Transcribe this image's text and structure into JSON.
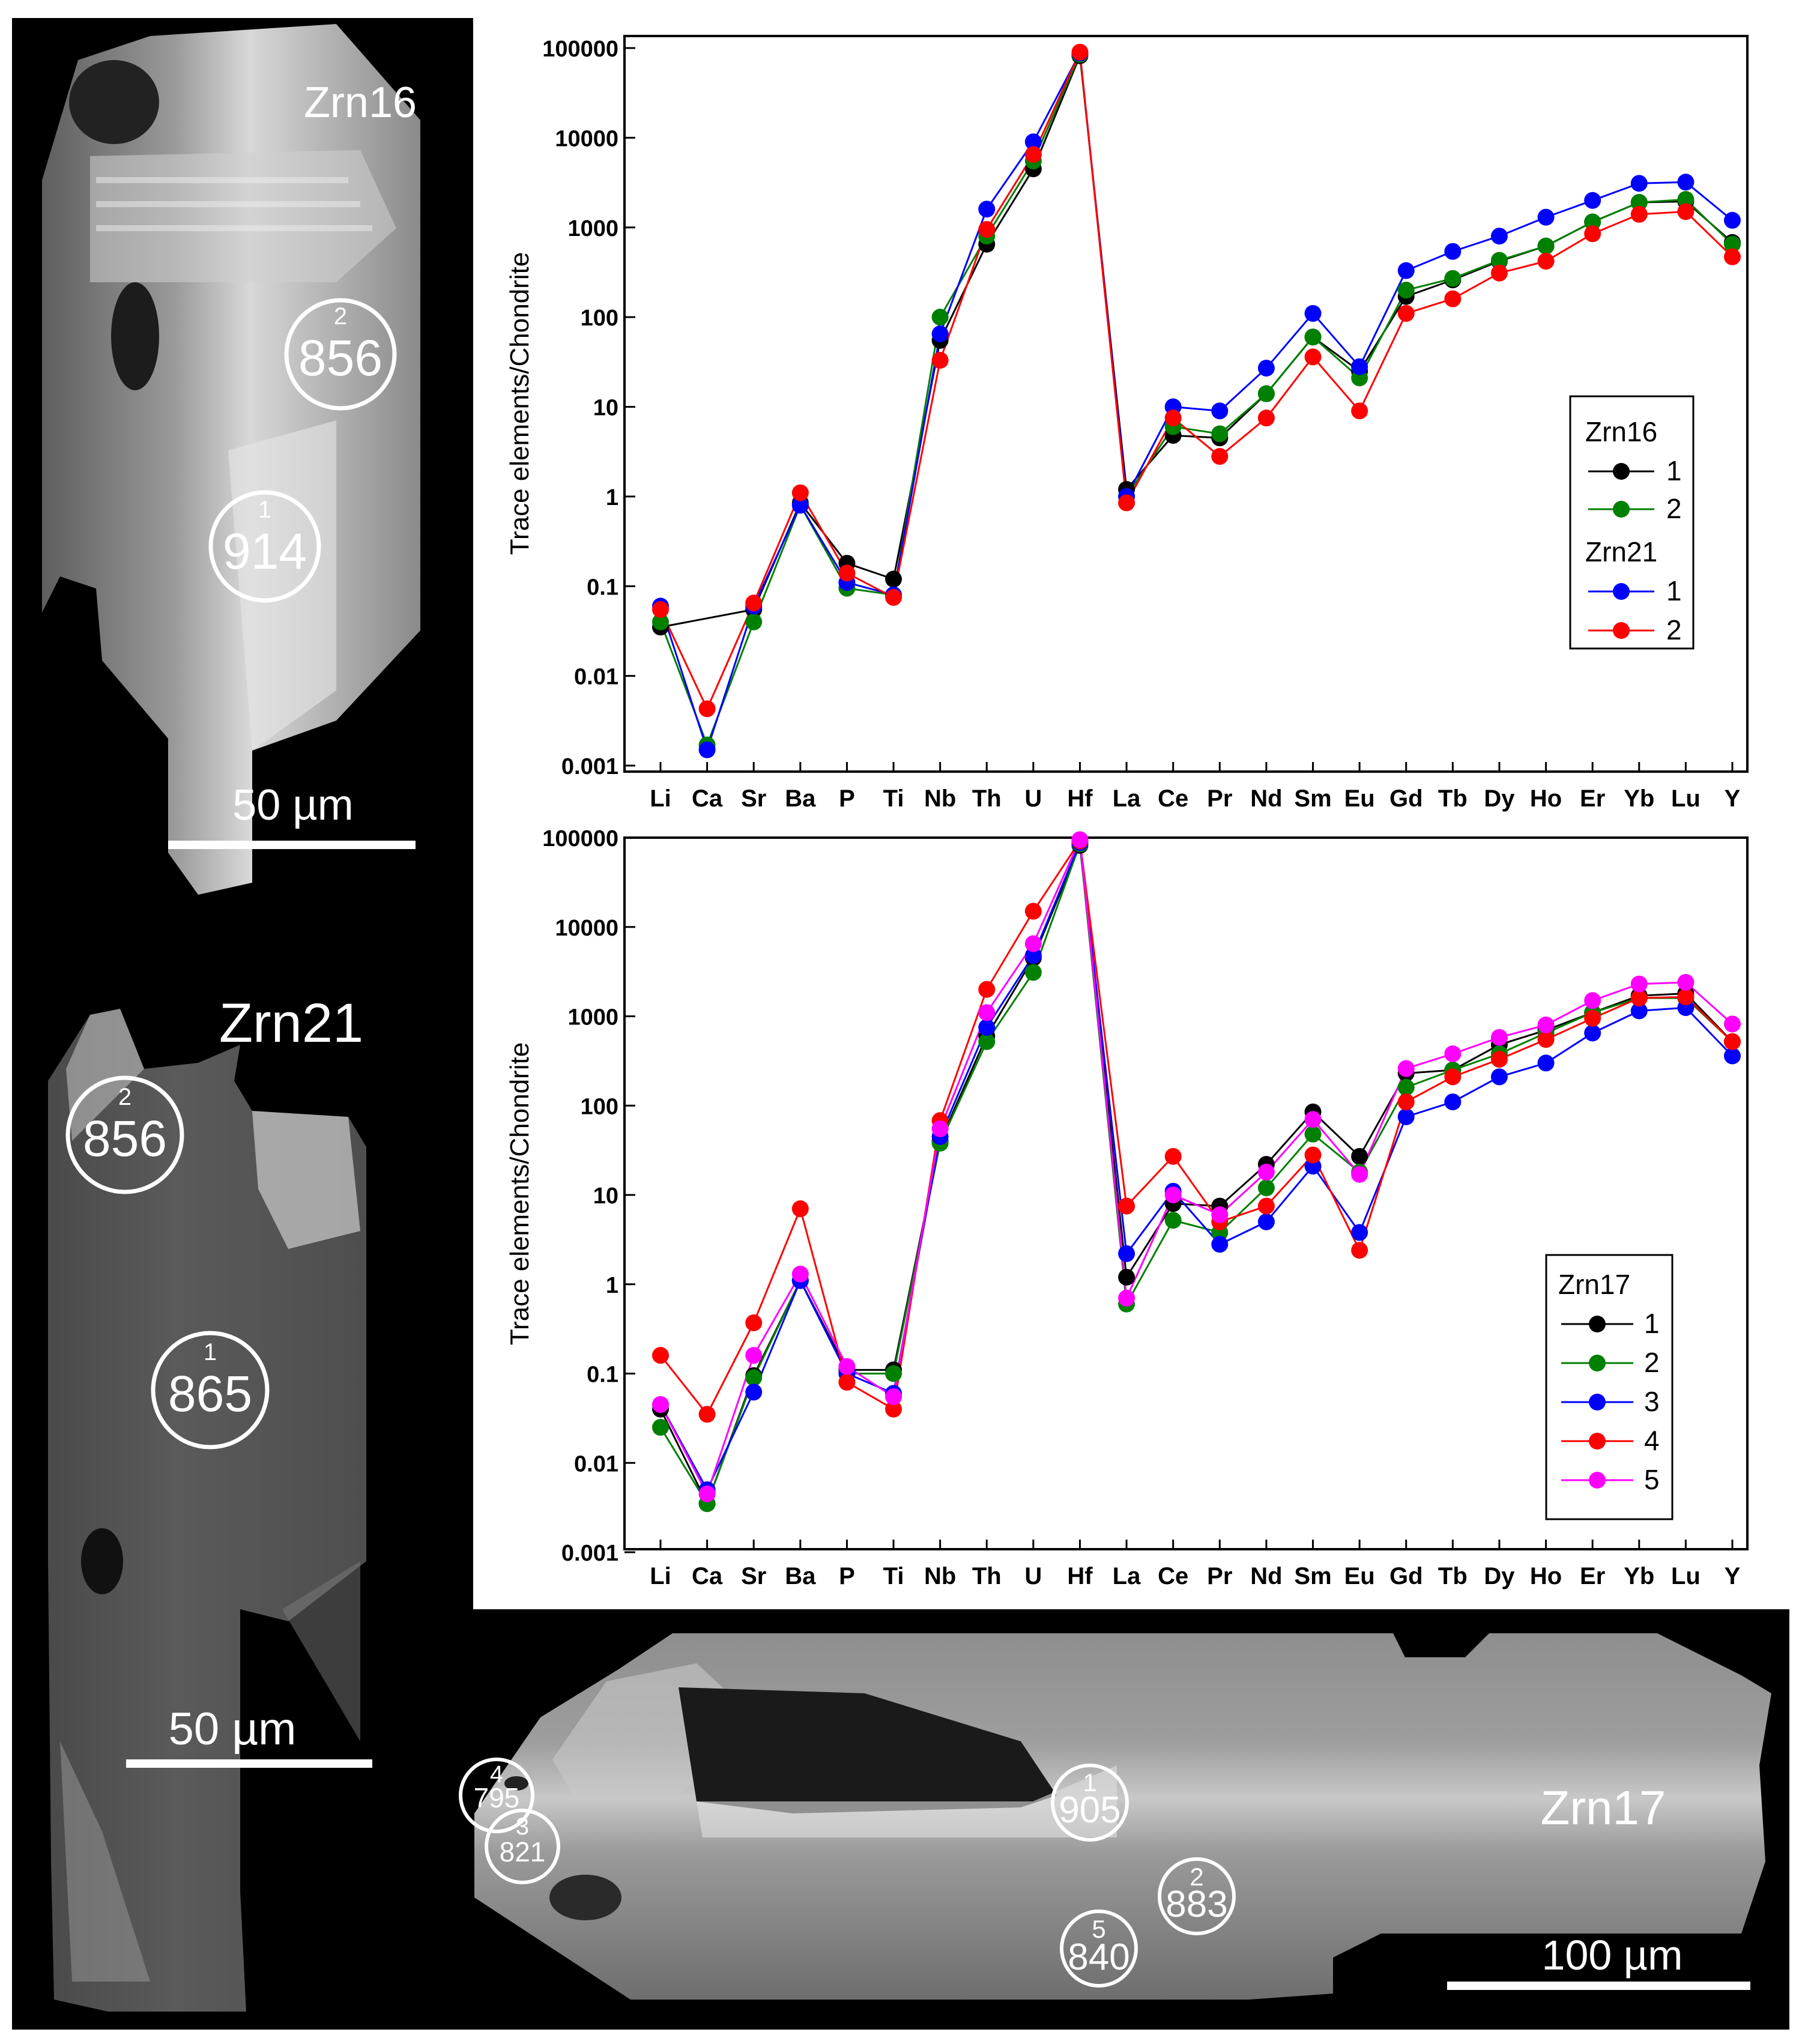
{
  "images": {
    "zrn16": {
      "label": "Zrn16",
      "scale_bar": "50 µm",
      "spots": [
        {
          "num": "2",
          "value": "856"
        },
        {
          "num": "1",
          "value": "914"
        }
      ]
    },
    "zrn21": {
      "label": "Zrn21",
      "scale_bar": "50 µm",
      "spots": [
        {
          "num": "2",
          "value": "856"
        },
        {
          "num": "1",
          "value": "865"
        }
      ]
    },
    "zrn17": {
      "label": "Zrn17",
      "scale_bar": "100 µm",
      "spots": [
        {
          "num": "4",
          "value": "795"
        },
        {
          "num": "3",
          "value": "821"
        },
        {
          "num": "1",
          "value": "905"
        },
        {
          "num": "2",
          "value": "883"
        },
        {
          "num": "5",
          "value": "840"
        }
      ]
    }
  },
  "colors": {
    "black": "#000000",
    "green": "#008000",
    "blue": "#0000ff",
    "red": "#ff0000",
    "magenta": "#ff00ff"
  },
  "chart_data": [
    {
      "type": "line",
      "ylabel": "Trace elements/Chondrite",
      "yscale": "log",
      "ylim": [
        0.001,
        100000
      ],
      "yticks": [
        "0.001",
        "0.01",
        "0.1",
        "1",
        "10",
        "100",
        "1000",
        "10000",
        "100000"
      ],
      "categories": [
        "Li",
        "Ca",
        "Sr",
        "Ba",
        "P",
        "Ti",
        "Nb",
        "Th",
        "U",
        "Hf",
        "La",
        "Ce",
        "Pr",
        "Nd",
        "Sm",
        "Eu",
        "Gd",
        "Tb",
        "Dy",
        "Ho",
        "Er",
        "Yb",
        "Lu",
        "Y"
      ],
      "legend": {
        "position": "right-middle",
        "groups": [
          {
            "title": "Zrn16",
            "entries": [
              {
                "label": "1",
                "color": "#000000"
              },
              {
                "label": "2",
                "color": "#008000"
              }
            ]
          },
          {
            "title": "Zrn21",
            "entries": [
              {
                "label": "1",
                "color": "#0000ff"
              },
              {
                "label": "2",
                "color": "#ff0000"
              }
            ]
          }
        ]
      },
      "series": [
        {
          "color": "#000000",
          "values": [
            0.035,
            null,
            0.055,
            0.85,
            0.18,
            0.12,
            55,
            650,
            4500,
            82000,
            1.2,
            4.8,
            4.5,
            14,
            60,
            25,
            170,
            260,
            420,
            620,
            1150,
            1900,
            1950,
            680
          ]
        },
        {
          "color": "#008000",
          "values": [
            0.04,
            0.0017,
            0.04,
            0.8,
            0.095,
            0.08,
            100,
            800,
            5500,
            85000,
            1.0,
            6,
            5,
            14,
            60,
            21,
            200,
            270,
            430,
            620,
            1150,
            1900,
            2050,
            650
          ]
        },
        {
          "color": "#0000ff",
          "values": [
            0.06,
            0.0015,
            0.06,
            0.8,
            0.11,
            0.08,
            65,
            1600,
            9000,
            88000,
            1.0,
            10,
            9,
            27,
            110,
            28,
            330,
            540,
            800,
            1300,
            2000,
            3100,
            3200,
            1200
          ]
        },
        {
          "color": "#ff0000",
          "values": [
            0.055,
            0.0043,
            0.065,
            1.1,
            0.14,
            0.075,
            33,
            950,
            6500,
            90000,
            0.85,
            7.5,
            2.8,
            7.5,
            36,
            9,
            110,
            160,
            310,
            420,
            850,
            1400,
            1500,
            470
          ]
        }
      ]
    },
    {
      "type": "line",
      "ylabel": "Trace elements/Chondrite",
      "yscale": "log",
      "ylim": [
        0.001,
        100000
      ],
      "yticks": [
        "0.001",
        "0.01",
        "0.1",
        "1",
        "10",
        "100",
        "1000",
        "10000",
        "100000"
      ],
      "categories": [
        "Li",
        "Ca",
        "Sr",
        "Ba",
        "P",
        "Ti",
        "Nb",
        "Th",
        "U",
        "Hf",
        "La",
        "Ce",
        "Pr",
        "Nd",
        "Sm",
        "Eu",
        "Gd",
        "Tb",
        "Dy",
        "Ho",
        "Er",
        "Yb",
        "Lu",
        "Y"
      ],
      "legend": {
        "position": "bottom-right",
        "groups": [
          {
            "title": "Zrn17",
            "entries": [
              {
                "label": "1",
                "color": "#000000"
              },
              {
                "label": "2",
                "color": "#008000"
              },
              {
                "label": "3",
                "color": "#0000ff"
              },
              {
                "label": "4",
                "color": "#ff0000"
              },
              {
                "label": "5",
                "color": "#ff00ff"
              }
            ]
          }
        ]
      },
      "series": [
        {
          "color": "#000000",
          "values": [
            0.04,
            0.0035,
            0.095,
            1.1,
            0.11,
            0.11,
            40,
            600,
            4500,
            82000,
            1.2,
            8,
            7.5,
            22,
            85,
            27,
            230,
            250,
            480,
            700,
            1100,
            1700,
            1800,
            520
          ]
        },
        {
          "color": "#008000",
          "values": [
            0.025,
            0.0035,
            0.09,
            1.1,
            0.1,
            0.1,
            38,
            520,
            3100,
            85000,
            0.6,
            5.2,
            3.8,
            12,
            48,
            18,
            160,
            250,
            380,
            650,
            1100,
            1600,
            1600,
            520
          ]
        },
        {
          "color": "#0000ff",
          "values": [
            0.045,
            0.005,
            0.062,
            1.1,
            0.1,
            0.06,
            45,
            750,
            4800,
            88000,
            2.2,
            11,
            2.8,
            5,
            21,
            3.8,
            75,
            110,
            210,
            300,
            650,
            1150,
            1250,
            360
          ]
        },
        {
          "color": "#ff0000",
          "values": [
            0.16,
            0.035,
            0.37,
            7,
            0.08,
            0.04,
            68,
            2000,
            15000,
            92000,
            7.5,
            27,
            5,
            7.5,
            28,
            2.4,
            110,
            210,
            330,
            550,
            950,
            1600,
            1650,
            520
          ]
        },
        {
          "color": "#ff00ff",
          "values": [
            0.045,
            0.0045,
            0.16,
            1.3,
            0.12,
            0.055,
            55,
            1100,
            6500,
            95000,
            0.7,
            10,
            6,
            18,
            70,
            17,
            260,
            380,
            580,
            800,
            1500,
            2300,
            2400,
            820
          ]
        }
      ]
    }
  ]
}
